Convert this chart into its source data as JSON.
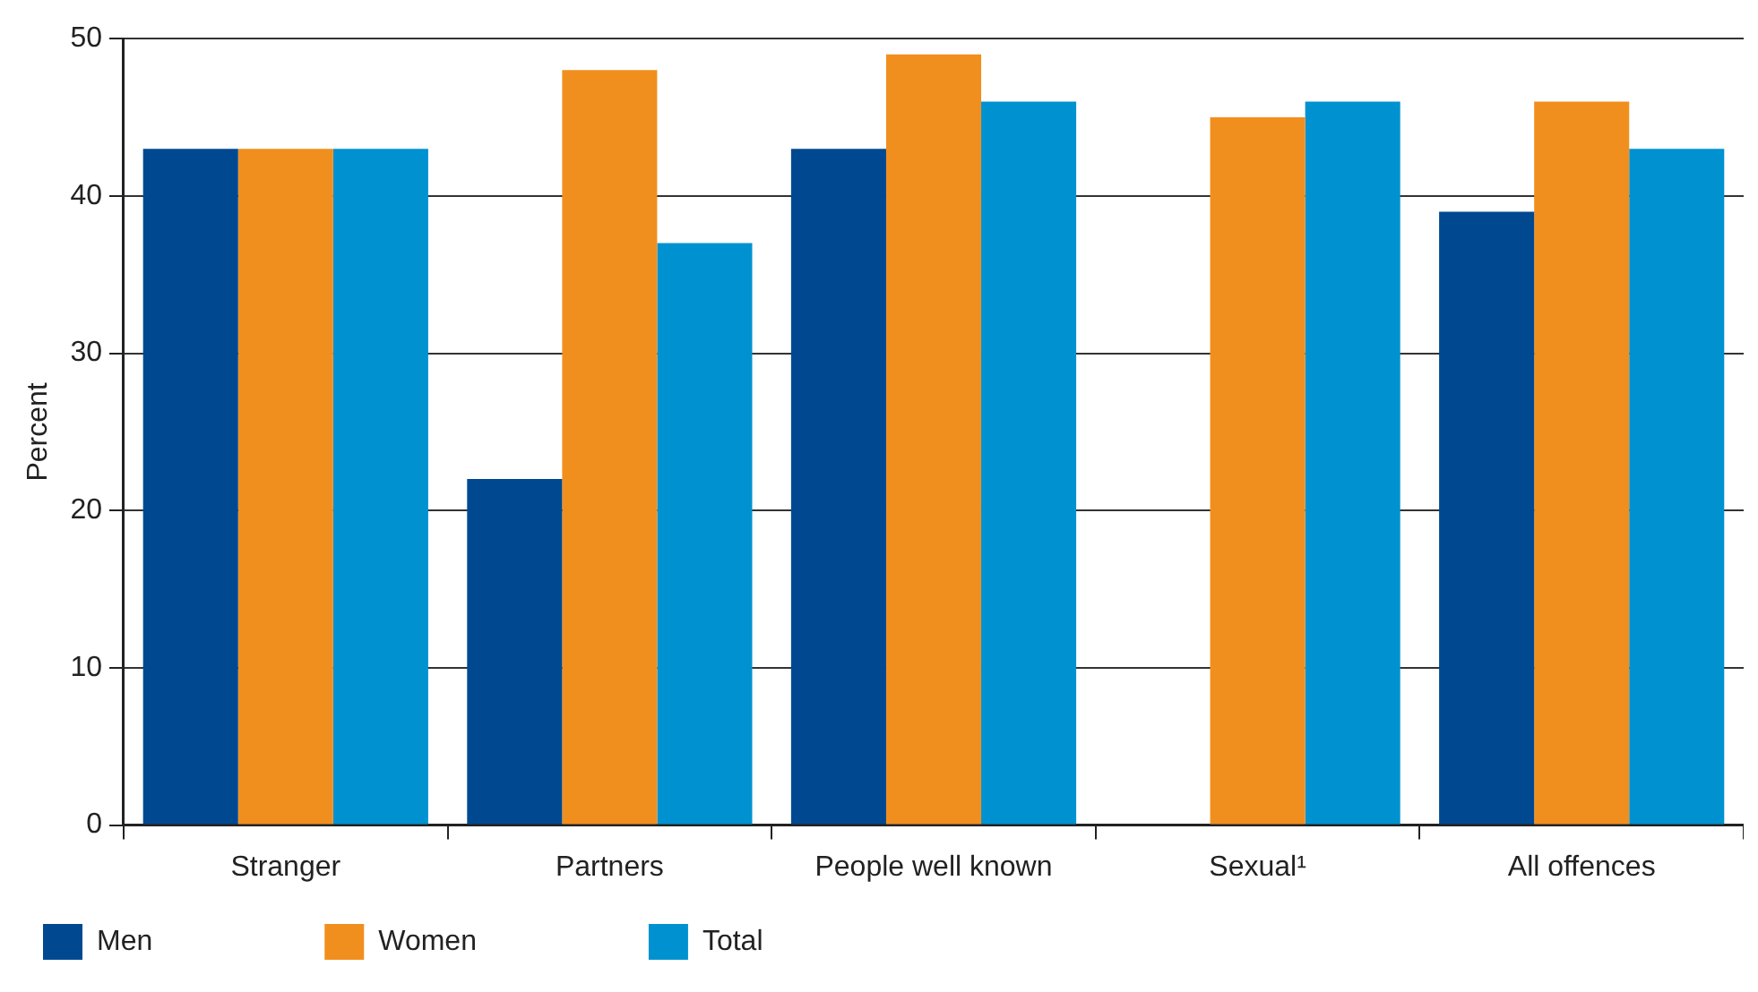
{
  "chart_data": {
    "type": "bar",
    "ylabel": "Percent",
    "categories": [
      "Stranger",
      "Partners",
      "People well known",
      "Sexual¹",
      "All offences"
    ],
    "series": [
      {
        "name": "Men",
        "color": "#004990",
        "values": [
          43,
          22,
          43,
          null,
          39
        ]
      },
      {
        "name": "Women",
        "color": "#f18f1e",
        "values": [
          43,
          48,
          49,
          45,
          46
        ]
      },
      {
        "name": "Total",
        "color": "#0092d0",
        "values": [
          43,
          37,
          46,
          46,
          43
        ]
      }
    ],
    "ylim": [
      0,
      50
    ],
    "yticks": [
      0,
      10,
      20,
      30,
      40,
      50
    ],
    "grid": "y",
    "legend": "bottom left"
  }
}
